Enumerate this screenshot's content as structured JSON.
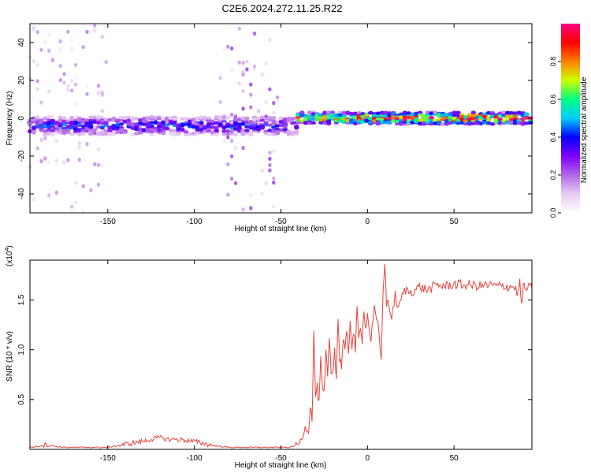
{
  "title": "C2E6.2024.272.11.25.R22",
  "colors": {
    "snr_line": "#e8423a",
    "frame": "#000000",
    "colormap": [
      "#ffffff",
      "#e6ccf2",
      "#b266e6",
      "#7f00ff",
      "#0000ff",
      "#00ccff",
      "#00ff80",
      "#ccff00",
      "#ff8000",
      "#ff0000",
      "#ff0080"
    ]
  },
  "chart_data": [
    {
      "type": "heatmap",
      "title": "C2E6.2024.272.11.25.R22",
      "xlabel": "Height of straight line (km)",
      "ylabel": "Frequency (Hz)",
      "xlim": [
        -195,
        95
      ],
      "ylim": [
        -50,
        50
      ],
      "x_ticks": [
        -150,
        -100,
        -50,
        0,
        50
      ],
      "y_ticks": [
        -40,
        -20,
        0,
        20,
        40
      ],
      "colorbar": {
        "label": "Normalized spectral amplitude",
        "range": [
          0.0,
          1.0
        ],
        "ticks": [
          0.0,
          0.2,
          0.4,
          0.6,
          0.8
        ],
        "colormap": "rainbow (white-purple-blue-cyan-green-yellow-orange-red-magenta)"
      },
      "features": [
        {
          "x_range": [
            -195,
            -40
          ],
          "frequency_hz": -4,
          "amplitude": 0.35,
          "spread_hz": 3
        },
        {
          "x_range": [
            -40,
            95
          ],
          "frequency_hz": 0,
          "amplitude": 0.75,
          "spread_hz": 2
        },
        {
          "x_range": [
            -195,
            -150
          ],
          "frequency_hz": 0,
          "amplitude": 0.1,
          "spread_hz": 50
        },
        {
          "x_range": [
            -85,
            -50
          ],
          "frequency_hz": 0,
          "amplitude": 0.15,
          "spread_hz": 50
        }
      ]
    },
    {
      "type": "line",
      "xlabel": "Height of straight line (km)",
      "ylabel": "SNR (10 * v/v)",
      "y_scale_label_base": "(x10",
      "y_scale_label_exp": "4",
      "y_scale_label_end": ")",
      "xlim": [
        -195,
        95
      ],
      "ylim": [
        0,
        1.9
      ],
      "x_ticks": [
        -150,
        -100,
        -50,
        0,
        50
      ],
      "y_ticks": [
        0.5,
        1.0,
        1.5
      ],
      "y_tick_labels": [
        "0.5",
        "1.0",
        "1.5"
      ],
      "series": [
        {
          "x": [
            -195,
            -190,
            -185,
            -180,
            -175,
            -170,
            -165,
            -160,
            -150,
            -140,
            -130,
            -120,
            -115,
            -110,
            -100,
            -90,
            -80,
            -70,
            -60,
            -50,
            -45,
            -40,
            -38,
            -36,
            -34,
            -33,
            -32,
            -31,
            -30,
            -29,
            -28,
            -27,
            -26,
            -25,
            -24,
            -23,
            -22,
            -21,
            -20,
            -19,
            -18,
            -17,
            -16,
            -15,
            -14,
            -13,
            -12,
            -11,
            -10,
            -9,
            -8,
            -7,
            -6,
            -5,
            -4,
            -3,
            -2,
            -1,
            0,
            2,
            4,
            6,
            8,
            9,
            10,
            11,
            12,
            14,
            16,
            18,
            20,
            22,
            25,
            30,
            35,
            40,
            45,
            50,
            55,
            60,
            65,
            70,
            75,
            80,
            85,
            87,
            88,
            89,
            90,
            91,
            92,
            95
          ],
          "y": [
            0.02,
            0.03,
            0.05,
            0.03,
            0.02,
            0.02,
            0.02,
            0.02,
            0.02,
            0.05,
            0.08,
            0.12,
            0.1,
            0.1,
            0.08,
            0.04,
            0.02,
            0.02,
            0.02,
            0.02,
            0.02,
            0.05,
            0.1,
            0.22,
            0.18,
            0.45,
            0.3,
            1.15,
            0.55,
            0.62,
            0.45,
            0.9,
            0.6,
            0.55,
            0.98,
            0.7,
            1.15,
            0.75,
            0.8,
            1.02,
            0.7,
            1.32,
            0.9,
            0.85,
            1.12,
            1.0,
            1.15,
            0.95,
            1.3,
            1.05,
            1.18,
            1.0,
            1.4,
            1.1,
            1.25,
            1.1,
            1.42,
            1.2,
            1.35,
            1.1,
            1.4,
            1.25,
            0.9,
            1.6,
            1.9,
            1.45,
            1.5,
            1.3,
            1.55,
            1.4,
            1.55,
            1.6,
            1.58,
            1.63,
            1.6,
            1.65,
            1.64,
            1.66,
            1.65,
            1.65,
            1.64,
            1.65,
            1.64,
            1.64,
            1.63,
            1.55,
            1.7,
            1.42,
            1.65,
            1.6,
            1.62,
            1.62
          ]
        }
      ]
    }
  ]
}
